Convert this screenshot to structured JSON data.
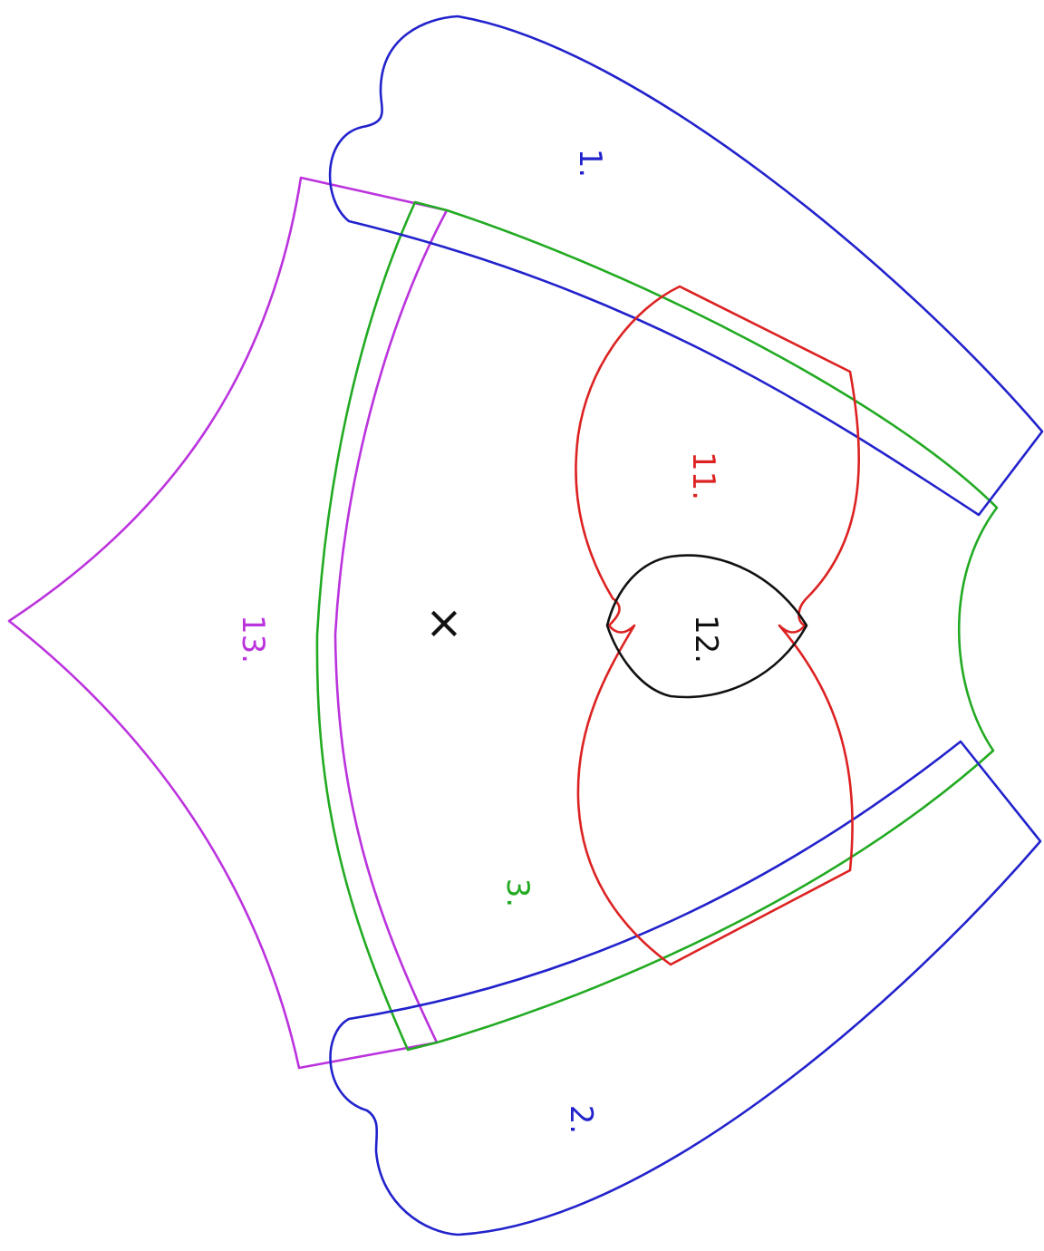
{
  "pieces": [
    {
      "id": "1",
      "label": "1.",
      "color": "#2222cc"
    },
    {
      "id": "2",
      "label": "2.",
      "color": "#2222cc"
    },
    {
      "id": "3",
      "label": "3.",
      "color": "#22aa22"
    },
    {
      "id": "11",
      "label": "11.",
      "color": "#dd2222"
    },
    {
      "id": "12",
      "label": "12.",
      "color": "#111111"
    },
    {
      "id": "13",
      "label": "13.",
      "color": "#bb33dd"
    }
  ],
  "center_mark": {
    "symbol": "×",
    "color": "#111111"
  }
}
